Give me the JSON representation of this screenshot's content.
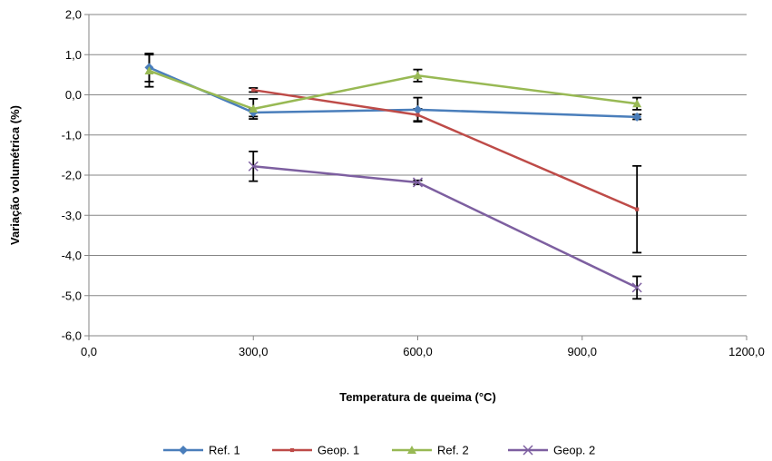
{
  "chart_data": {
    "type": "line",
    "title": "",
    "xlabel": "Temperatura de queima (°C)",
    "ylabel": "Variação volumétrica (%)",
    "xlim": [
      0,
      1200
    ],
    "ylim": [
      -6,
      2
    ],
    "x_ticks": [
      0,
      300,
      600,
      900,
      1200
    ],
    "x_tick_labels": [
      "0,0",
      "300,0",
      "600,0",
      "900,0",
      "1200,0"
    ],
    "y_ticks": [
      2,
      1,
      0,
      -1,
      -2,
      -3,
      -4,
      -5,
      -6
    ],
    "y_tick_labels": [
      "2,0",
      "1,0",
      "0,0",
      "-1,0",
      "-2,0",
      "-3,0",
      "-4,0",
      "-5,0",
      "-6,0"
    ],
    "grid": "horizontal",
    "legend_position": "bottom",
    "series": [
      {
        "name": "Ref. 1",
        "color": "#4a7ebb",
        "marker": "diamond",
        "points": [
          {
            "x": 110,
            "y": 0.68,
            "err": 0.35
          },
          {
            "x": 300,
            "y": -0.44,
            "err": 0.1
          },
          {
            "x": 600,
            "y": -0.37,
            "err": 0.3
          },
          {
            "x": 1000,
            "y": -0.55,
            "err": 0.06
          }
        ]
      },
      {
        "name": "Geop. 1",
        "color": "#be4b48",
        "marker": "square",
        "points": [
          {
            "x": 300,
            "y": 0.12,
            "err": 0.05
          },
          {
            "x": 600,
            "y": -0.5,
            "err": 0.15
          },
          {
            "x": 1000,
            "y": -2.85,
            "err": 1.08
          }
        ]
      },
      {
        "name": "Ref. 2",
        "color": "#98b954",
        "marker": "triangle",
        "points": [
          {
            "x": 110,
            "y": 0.6,
            "err": 0.4
          },
          {
            "x": 300,
            "y": -0.35,
            "err": 0.25
          },
          {
            "x": 600,
            "y": 0.48,
            "err": 0.15
          },
          {
            "x": 1000,
            "y": -0.22,
            "err": 0.15
          }
        ]
      },
      {
        "name": "Geop. 2",
        "color": "#7d5fa0",
        "marker": "x",
        "points": [
          {
            "x": 300,
            "y": -1.78,
            "err": 0.37
          },
          {
            "x": 600,
            "y": -2.18,
            "err": 0.05
          },
          {
            "x": 1000,
            "y": -4.8,
            "err": 0.28
          }
        ]
      }
    ]
  }
}
